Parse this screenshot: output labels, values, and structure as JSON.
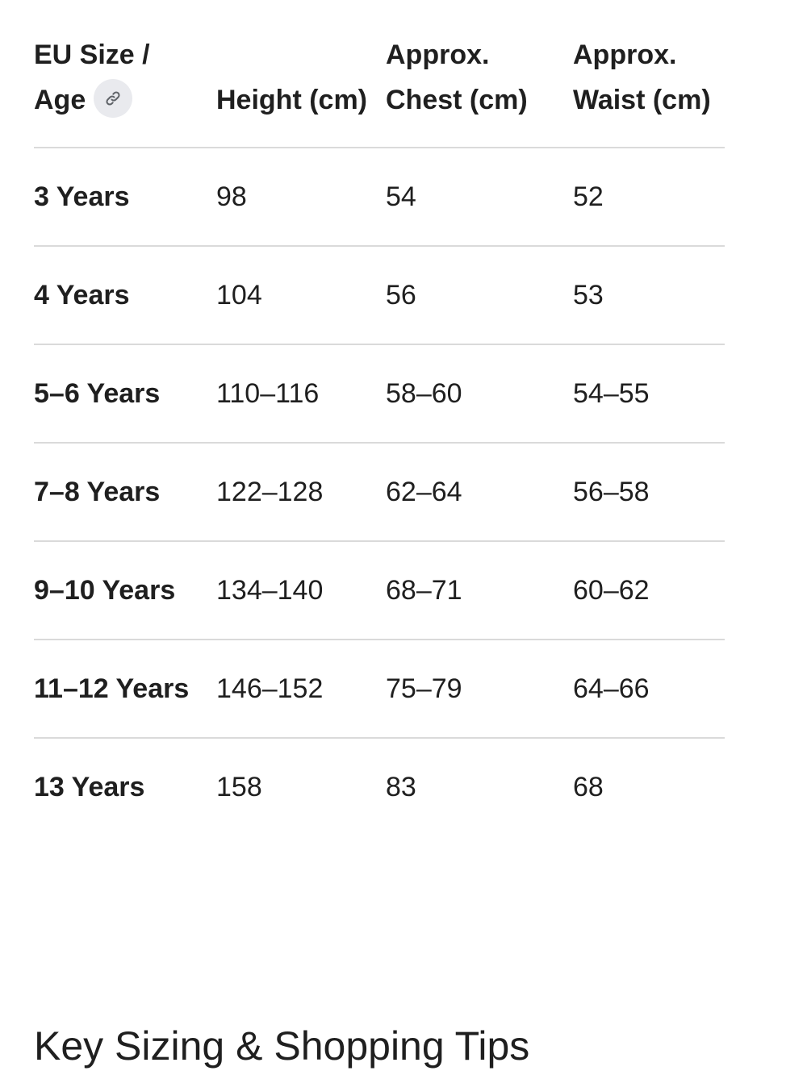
{
  "table": {
    "headers": {
      "size_age_line1": "EU Size /",
      "size_age_line2": "Age",
      "height": "Height (cm)",
      "chest": "Approx. Chest (cm)",
      "waist": "Approx. Waist (cm)"
    },
    "header_link_icon": "link-icon",
    "rows": [
      {
        "size": "3 Years",
        "height": "98",
        "chest": "54",
        "waist": "52"
      },
      {
        "size": "4 Years",
        "height": "104",
        "chest": "56",
        "waist": "53"
      },
      {
        "size": "5–6 Years",
        "height": "110–116",
        "chest": "58–60",
        "waist": "54–55"
      },
      {
        "size": "7–8 Years",
        "height": "122–128",
        "chest": "62–64",
        "waist": "56–58"
      },
      {
        "size": "9–10 Years",
        "height": "134–140",
        "chest": "68–71",
        "waist": "60–62"
      },
      {
        "size": "11–12 Years",
        "height": "146–152",
        "chest": "75–79",
        "waist": "64–66"
      },
      {
        "size": "13 Years",
        "height": "158",
        "chest": "83",
        "waist": "68"
      }
    ]
  },
  "section_heading": "Key Sizing & Shopping Tips",
  "colors": {
    "text": "#1f1f1f",
    "divider": "#dadada",
    "chip_background": "#e9eaee",
    "icon": "#5f6368"
  }
}
